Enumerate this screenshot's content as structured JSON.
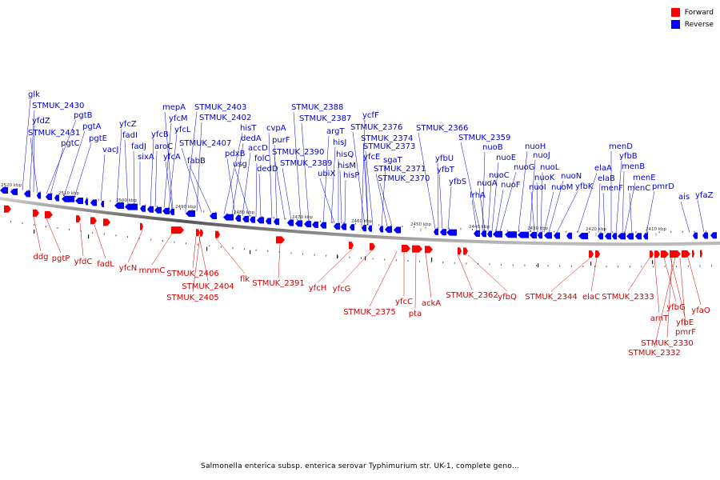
{
  "legend": {
    "forward_label": "Forward",
    "reverse_label": "Reverse",
    "forward_color": "#ff0000",
    "reverse_color": "#0000ff"
  },
  "caption": "Salmonella enterica subsp. enterica serovar Typhimurium str. UK-1, complete geno...",
  "scale_labels": [
    "2520 kbp",
    "2510 kbp",
    "2500 kbp",
    "2490 kbp",
    "2480 kbp",
    "2470 kbp",
    "2460 kbp",
    "2450 kbp",
    "2440 kbp",
    "2430 kbp",
    "2420 kbp",
    "2410 kbp"
  ],
  "reverse_genes": [
    "glk",
    "STMUK_2430",
    "yfdZ",
    "STMUK_2431",
    "pgtB",
    "pgtC",
    "pgtA",
    "pgtE",
    "vacJ",
    "yfcZ",
    "fadI",
    "fadJ",
    "sixA",
    "yfcB",
    "aroC",
    "yfcM",
    "yfcL",
    "yfcA",
    "mepA",
    "STMUK_2403",
    "STMUK_2402",
    "STMUK_2407",
    "fabB",
    "hisT",
    "dedA",
    "pdxB",
    "accD",
    "usg",
    "folC",
    "dedD",
    "cvpA",
    "purF",
    "STMUK_2390",
    "STMUK_2389",
    "STMUK_2388",
    "STMUK_2387",
    "argT",
    "hisJ",
    "ubiX",
    "hisQ",
    "hisM",
    "hisP",
    "ycfF",
    "STMUK_2376",
    "STMUK_2374",
    "yfcE",
    "STMUK_2373",
    "sgaT",
    "STMUK_2371",
    "STMUK_2370",
    "STMUK_2366",
    "yfbU",
    "yfbT",
    "yfbS",
    "lrhA",
    "STMUK_2359",
    "nuoB",
    "nuoA",
    "nuoC",
    "nuoE",
    "nuoF",
    "nuoG",
    "nuoH",
    "nuoJ",
    "nuoI",
    "nuoK",
    "nuoL",
    "nuoM",
    "nuoN",
    "yfbK",
    "elaA",
    "elaB",
    "menF",
    "menD",
    "yfbB",
    "menB",
    "menE",
    "menC",
    "pmrD",
    "ais",
    "yfaZ"
  ],
  "forward_genes": [
    "ddg",
    "pgtP",
    "yfdC",
    "fadL",
    "yfcN",
    "mnmC",
    "STMUK_2406",
    "STMUK_2404",
    "STMUK_2405",
    "flk",
    "STMUK_2391",
    "yfcH",
    "yfcG",
    "STMUK_2375",
    "yfcC",
    "pta",
    "ackA",
    "STMUK_2362",
    "yfbQ",
    "STMUK_2344",
    "elaC",
    "STMUK_2333",
    "arnT",
    "yfbG",
    "yfbE",
    "yfaO",
    "STMUK_2330",
    "pmrF",
    "STMUK_2332"
  ]
}
